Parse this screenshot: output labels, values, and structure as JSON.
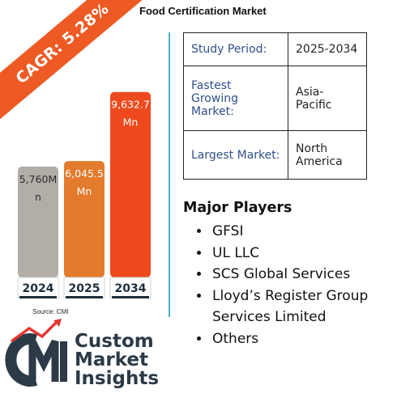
{
  "title": "Food Certification Market",
  "cagr": "CAGR: 5.28%",
  "chart_data": {
    "type": "bar",
    "categories": [
      "2024",
      "2025",
      "2034"
    ],
    "values": [
      5760,
      6045.5,
      9632.7
    ],
    "value_labels": [
      "5,760M\nn",
      "6,045.5\nMn",
      "9,632.7\nMn"
    ],
    "colors": [
      "#b3ada8",
      "#e37b2d",
      "#ee4a1e"
    ],
    "year_bar_color": "#1f2e3c",
    "ylim": [
      0,
      10000
    ]
  },
  "info_table": [
    {
      "key": "Study Period:",
      "value": "2025-2034"
    },
    {
      "key": "Fastest Growing Market:",
      "value": "Asia-Pacific"
    },
    {
      "key": "Largest Market:",
      "value": "North America"
    }
  ],
  "major_players": {
    "title": "Major Players",
    "items": [
      "GFSI",
      "UL LLC",
      "SCS Global Services",
      "Lloyd’s Register Group Services Limited",
      "Others"
    ]
  },
  "source": "Source: CMI",
  "logo": {
    "initials": "CMI",
    "line1": "Custom",
    "line2": "Market",
    "line3": "Insights"
  }
}
